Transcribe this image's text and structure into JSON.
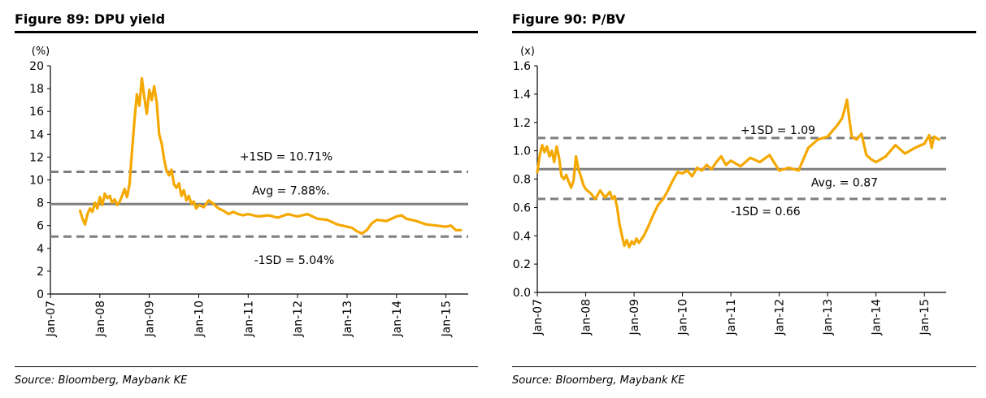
{
  "left": {
    "title": "Figure 89: DPU yield",
    "source": "Source: Bloomberg, Maybank KE",
    "chart_data": {
      "type": "line",
      "unit_label": "(%)",
      "ylim": [
        0,
        20
      ],
      "yticks": [
        0,
        2,
        4,
        6,
        8,
        10,
        12,
        14,
        16,
        18,
        20
      ],
      "ytick_labels": [
        "0",
        "2",
        "4",
        "6",
        "8",
        "10",
        "12",
        "14",
        "16",
        "18",
        "20"
      ],
      "xlim": [
        2007.0,
        2015.45
      ],
      "xticks": [
        2007,
        2008,
        2009,
        2010,
        2011,
        2012,
        2013,
        2014,
        2015
      ],
      "xtick_labels": [
        "Jan-07",
        "Jan-08",
        "Jan-09",
        "Jan-10",
        "Jan-11",
        "Jan-12",
        "Jan-13",
        "Jan-14",
        "Jan-15"
      ],
      "grid": false,
      "series": [
        {
          "color": "#F5A800",
          "x": [
            2007.6,
            2007.65,
            2007.7,
            2007.75,
            2007.8,
            2007.85,
            2007.9,
            2007.95,
            2008.0,
            2008.05,
            2008.1,
            2008.15,
            2008.2,
            2008.25,
            2008.3,
            2008.35,
            2008.4,
            2008.45,
            2008.5,
            2008.55,
            2008.6,
            2008.65,
            2008.7,
            2008.75,
            2008.8,
            2008.85,
            2008.9,
            2008.95,
            2009.0,
            2009.05,
            2009.1,
            2009.15,
            2009.2,
            2009.25,
            2009.3,
            2009.35,
            2009.4,
            2009.45,
            2009.5,
            2009.55,
            2009.6,
            2009.65,
            2009.7,
            2009.75,
            2009.8,
            2009.85,
            2009.9,
            2009.95,
            2010.0,
            2010.1,
            2010.2,
            2010.3,
            2010.4,
            2010.5,
            2010.6,
            2010.7,
            2010.8,
            2010.9,
            2011.0,
            2011.2,
            2011.4,
            2011.6,
            2011.8,
            2012.0,
            2012.2,
            2012.4,
            2012.6,
            2012.8,
            2013.0,
            2013.1,
            2013.2,
            2013.3,
            2013.4,
            2013.5,
            2013.6,
            2013.8,
            2014.0,
            2014.1,
            2014.2,
            2014.4,
            2014.6,
            2014.8,
            2015.0,
            2015.1,
            2015.2,
            2015.3
          ],
          "y": [
            7.3,
            6.6,
            6.1,
            7.0,
            7.5,
            7.2,
            8.0,
            7.5,
            8.5,
            7.8,
            8.8,
            8.4,
            8.6,
            8.0,
            8.3,
            7.8,
            8.1,
            8.6,
            9.2,
            8.5,
            9.6,
            12.5,
            15.2,
            17.5,
            16.5,
            18.9,
            17.2,
            15.8,
            17.9,
            17.0,
            18.2,
            16.8,
            14.0,
            13.2,
            11.8,
            10.8,
            10.4,
            10.9,
            9.6,
            9.3,
            9.7,
            8.6,
            9.1,
            8.2,
            8.6,
            7.9,
            8.1,
            7.5,
            7.8,
            7.6,
            8.2,
            7.9,
            7.5,
            7.3,
            7.0,
            7.2,
            7.0,
            6.9,
            7.0,
            6.8,
            6.9,
            6.7,
            7.0,
            6.8,
            7.0,
            6.6,
            6.5,
            6.1,
            5.9,
            5.8,
            5.5,
            5.3,
            5.6,
            6.2,
            6.5,
            6.4,
            6.8,
            6.9,
            6.6,
            6.4,
            6.1,
            6.0,
            5.9,
            6.0,
            5.6,
            5.6
          ]
        }
      ],
      "reference_lines": [
        {
          "value": 10.71,
          "style": "dashed",
          "label": "+1SD = 10.71%"
        },
        {
          "value": 7.88,
          "style": "solid",
          "label": "Avg = 7.88%."
        },
        {
          "value": 5.04,
          "style": "dashed",
          "label": "-1SD = 5.04%"
        }
      ]
    }
  },
  "right": {
    "title": "Figure 90: P/BV",
    "source": "Source: Bloomberg, Maybank KE",
    "chart_data": {
      "type": "line",
      "unit_label": "(x)",
      "ylim": [
        0,
        1.6
      ],
      "yticks": [
        0,
        0.2,
        0.4,
        0.6,
        0.8,
        1.0,
        1.2,
        1.4,
        1.6
      ],
      "ytick_labels": [
        "0.0",
        "0.2",
        "0.4",
        "0.6",
        "0.8",
        "1.0",
        "1.2",
        "1.4",
        "1.6"
      ],
      "xlim": [
        2007.0,
        2015.45
      ],
      "xticks": [
        2007,
        2008,
        2009,
        2010,
        2011,
        2012,
        2013,
        2014,
        2015
      ],
      "xtick_labels": [
        "Jan-07",
        "Jan-08",
        "Jan-09",
        "Jan-10",
        "Jan-11",
        "Jan-12",
        "Jan-13",
        "Jan-14",
        "Jan-15"
      ],
      "grid": false,
      "series": [
        {
          "color": "#F5A800",
          "x": [
            2007.0,
            2007.05,
            2007.1,
            2007.15,
            2007.2,
            2007.25,
            2007.3,
            2007.35,
            2007.4,
            2007.45,
            2007.5,
            2007.55,
            2007.6,
            2007.65,
            2007.7,
            2007.75,
            2007.8,
            2007.85,
            2007.9,
            2007.95,
            2008.0,
            2008.1,
            2008.2,
            2008.3,
            2008.4,
            2008.5,
            2008.55,
            2008.6,
            2008.65,
            2008.7,
            2008.75,
            2008.8,
            2008.85,
            2008.9,
            2008.95,
            2009.0,
            2009.05,
            2009.1,
            2009.2,
            2009.3,
            2009.4,
            2009.5,
            2009.6,
            2009.7,
            2009.8,
            2009.9,
            2010.0,
            2010.1,
            2010.2,
            2010.3,
            2010.4,
            2010.5,
            2010.6,
            2010.7,
            2010.8,
            2010.9,
            2011.0,
            2011.2,
            2011.4,
            2011.6,
            2011.8,
            2012.0,
            2012.2,
            2012.4,
            2012.6,
            2012.8,
            2013.0,
            2013.1,
            2013.2,
            2013.3,
            2013.35,
            2013.4,
            2013.45,
            2013.5,
            2013.6,
            2013.7,
            2013.8,
            2013.9,
            2014.0,
            2014.2,
            2014.4,
            2014.6,
            2014.8,
            2015.0,
            2015.1,
            2015.15,
            2015.2,
            2015.3
          ],
          "y": [
            0.85,
            0.97,
            1.04,
            0.99,
            1.03,
            0.96,
            1.0,
            0.92,
            1.03,
            0.95,
            0.82,
            0.8,
            0.83,
            0.78,
            0.74,
            0.79,
            0.96,
            0.87,
            0.82,
            0.76,
            0.73,
            0.7,
            0.66,
            0.72,
            0.67,
            0.71,
            0.66,
            0.68,
            0.6,
            0.48,
            0.4,
            0.33,
            0.37,
            0.32,
            0.36,
            0.34,
            0.38,
            0.35,
            0.4,
            0.47,
            0.55,
            0.62,
            0.66,
            0.72,
            0.79,
            0.85,
            0.84,
            0.86,
            0.82,
            0.88,
            0.86,
            0.9,
            0.87,
            0.92,
            0.96,
            0.9,
            0.93,
            0.89,
            0.95,
            0.92,
            0.97,
            0.86,
            0.88,
            0.86,
            1.02,
            1.08,
            1.1,
            1.14,
            1.18,
            1.23,
            1.29,
            1.36,
            1.22,
            1.1,
            1.08,
            1.12,
            0.97,
            0.94,
            0.92,
            0.96,
            1.04,
            0.98,
            1.02,
            1.05,
            1.11,
            1.02,
            1.1,
            1.08
          ]
        }
      ],
      "reference_lines": [
        {
          "value": 1.09,
          "style": "dashed",
          "label": "+1SD = 1.09"
        },
        {
          "value": 0.87,
          "style": "solid",
          "label": "Avg. = 0.87"
        },
        {
          "value": 0.66,
          "style": "dashed",
          "label": "-1SD = 0.66"
        }
      ]
    }
  }
}
